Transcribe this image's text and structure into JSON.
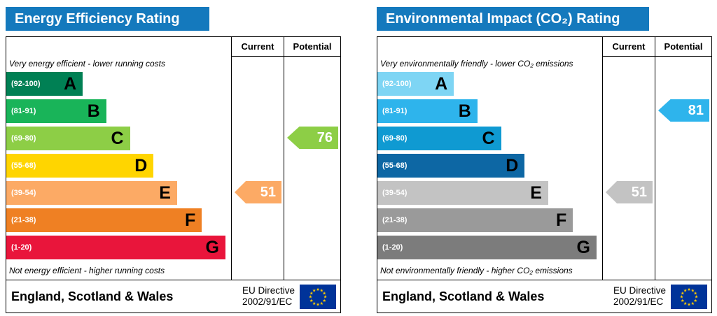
{
  "colors": {
    "header_bg": "#1479bd",
    "flag_bg": "#003399",
    "flag_star": "#ffcc00"
  },
  "chart_data": [
    {
      "type": "bar",
      "title": "Energy Efficiency Rating",
      "columns": [
        "Current",
        "Potential"
      ],
      "top_note": "Very energy efficient - lower running costs",
      "bottom_note": "Not energy efficient - higher running costs",
      "bands": [
        {
          "letter": "A",
          "range": "(92-100)",
          "color": "#008054",
          "width_pct": 34
        },
        {
          "letter": "B",
          "range": "(81-91)",
          "color": "#19b459",
          "width_pct": 44.5
        },
        {
          "letter": "C",
          "range": "(69-80)",
          "color": "#8dce46",
          "width_pct": 55
        },
        {
          "letter": "D",
          "range": "(55-68)",
          "color": "#ffd500",
          "width_pct": 65.5
        },
        {
          "letter": "E",
          "range": "(39-54)",
          "color": "#fcaa65",
          "width_pct": 76
        },
        {
          "letter": "F",
          "range": "(21-38)",
          "color": "#ef8023",
          "width_pct": 87
        },
        {
          "letter": "G",
          "range": "(1-20)",
          "color": "#e9153b",
          "width_pct": 97.5
        }
      ],
      "current": {
        "value": 51,
        "band": "E",
        "band_index": 4,
        "color": "#fcaa65"
      },
      "potential": {
        "value": 76,
        "band": "C",
        "band_index": 2,
        "color": "#8dce46"
      },
      "footer": {
        "region": "England, Scotland & Wales",
        "eu_directive": [
          "EU Directive",
          "2002/91/EC"
        ]
      }
    },
    {
      "type": "bar",
      "title": "Environmental Impact (CO₂) Rating",
      "columns": [
        "Current",
        "Potential"
      ],
      "top_note": "Very environmentally friendly - lower CO₂ emissions",
      "bottom_note": "Not environmentally friendly - higher CO₂ emissions",
      "bands": [
        {
          "letter": "A",
          "range": "(92-100)",
          "color": "#7ed5f4",
          "width_pct": 34
        },
        {
          "letter": "B",
          "range": "(81-91)",
          "color": "#2eb4ec",
          "width_pct": 44.5
        },
        {
          "letter": "C",
          "range": "(69-80)",
          "color": "#0f9ad2",
          "width_pct": 55
        },
        {
          "letter": "D",
          "range": "(55-68)",
          "color": "#0d67a4",
          "width_pct": 65.5
        },
        {
          "letter": "E",
          "range": "(39-54)",
          "color": "#c3c3c3",
          "width_pct": 76
        },
        {
          "letter": "F",
          "range": "(21-38)",
          "color": "#9a9a9a",
          "width_pct": 87
        },
        {
          "letter": "G",
          "range": "(1-20)",
          "color": "#7c7c7c",
          "width_pct": 97.5
        }
      ],
      "current": {
        "value": 51,
        "band": "E",
        "band_index": 4,
        "color": "#c3c3c3"
      },
      "potential": {
        "value": 81,
        "band": "B",
        "band_index": 1,
        "color": "#2eb4ec"
      },
      "footer": {
        "region": "England, Scotland & Wales",
        "eu_directive": [
          "EU Directive",
          "2002/91/EC"
        ]
      }
    }
  ]
}
